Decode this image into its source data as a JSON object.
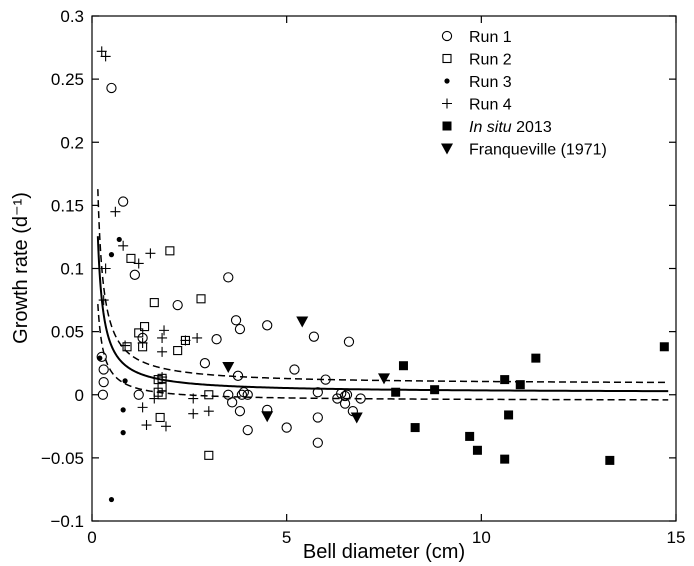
{
  "chart_data": {
    "type": "scatter",
    "xlabel": "Bell diameter (cm)",
    "ylabel": "Growth rate (d⁻¹)",
    "xlim": [
      0,
      15
    ],
    "ylim": [
      -0.1,
      0.3
    ],
    "xticks": [
      0,
      5,
      10,
      15
    ],
    "yticks": [
      -0.1,
      -0.05,
      0,
      0.05,
      0.1,
      0.15,
      0.2,
      0.25,
      0.3
    ],
    "ytick_labels": [
      "−0.1",
      "−0.05",
      "0",
      "0.05",
      "0.1",
      "0.15",
      "0.2",
      "0.25",
      "0.3"
    ],
    "grid": false,
    "legend_position": "top-right",
    "series": [
      {
        "name": "Run 1",
        "marker": "open-circle",
        "points": [
          [
            0.25,
            0.03
          ],
          [
            0.3,
            0.02
          ],
          [
            0.3,
            0.01
          ],
          [
            0.28,
            0.0
          ],
          [
            0.5,
            0.243
          ],
          [
            0.8,
            0.153
          ],
          [
            1.1,
            0.095
          ],
          [
            1.2,
            0.0
          ],
          [
            1.3,
            0.045
          ],
          [
            2.2,
            0.071
          ],
          [
            2.9,
            0.025
          ],
          [
            3.2,
            0.044
          ],
          [
            3.5,
            0.093
          ],
          [
            3.5,
            0.0
          ],
          [
            3.6,
            -0.006
          ],
          [
            3.7,
            0.059
          ],
          [
            3.75,
            0.015
          ],
          [
            3.8,
            0.052
          ],
          [
            3.8,
            -0.013
          ],
          [
            3.85,
            0.0
          ],
          [
            3.9,
            0.002
          ],
          [
            4.0,
            -0.028
          ],
          [
            4.0,
            0.0
          ],
          [
            4.5,
            0.055
          ],
          [
            4.5,
            -0.012
          ],
          [
            5.0,
            -0.026
          ],
          [
            5.2,
            0.02
          ],
          [
            5.7,
            0.046
          ],
          [
            5.8,
            0.002
          ],
          [
            5.8,
            -0.018
          ],
          [
            5.8,
            -0.038
          ],
          [
            6.0,
            0.012
          ],
          [
            6.3,
            -0.003
          ],
          [
            6.4,
            0.001
          ],
          [
            6.5,
            -0.001
          ],
          [
            6.5,
            -0.007
          ],
          [
            6.55,
            0.0
          ],
          [
            6.6,
            0.042
          ],
          [
            6.7,
            -0.013
          ],
          [
            6.9,
            -0.003
          ]
        ]
      },
      {
        "name": "Run 2",
        "marker": "open-square",
        "points": [
          [
            0.9,
            0.038
          ],
          [
            1.0,
            0.108
          ],
          [
            1.2,
            0.049
          ],
          [
            1.3,
            0.038
          ],
          [
            1.35,
            0.054
          ],
          [
            1.6,
            0.073
          ],
          [
            1.7,
            0.012
          ],
          [
            1.7,
            0.002
          ],
          [
            1.75,
            -0.018
          ],
          [
            1.8,
            0.0
          ],
          [
            1.8,
            0.013
          ],
          [
            1.8,
            0.006
          ],
          [
            2.0,
            0.114
          ],
          [
            2.2,
            0.035
          ],
          [
            2.4,
            0.043
          ],
          [
            2.8,
            0.076
          ],
          [
            3.0,
            0.0
          ],
          [
            3.0,
            -0.048
          ]
        ]
      },
      {
        "name": "Run 3",
        "marker": "filled-circle",
        "points": [
          [
            0.2,
            0.029
          ],
          [
            0.5,
            0.111
          ],
          [
            0.5,
            -0.083
          ],
          [
            0.7,
            0.123
          ],
          [
            0.8,
            -0.012
          ],
          [
            0.8,
            -0.03
          ],
          [
            0.85,
            0.011
          ]
        ]
      },
      {
        "name": "Run 4",
        "marker": "plus",
        "points": [
          [
            0.25,
            0.272
          ],
          [
            0.35,
            0.268
          ],
          [
            0.35,
            0.1
          ],
          [
            0.3,
            0.075
          ],
          [
            0.6,
            0.145
          ],
          [
            0.8,
            0.118
          ],
          [
            0.85,
            0.039
          ],
          [
            1.2,
            0.104
          ],
          [
            1.3,
            0.041
          ],
          [
            1.3,
            -0.01
          ],
          [
            1.4,
            -0.024
          ],
          [
            1.5,
            0.112
          ],
          [
            1.6,
            -0.003
          ],
          [
            1.8,
            0.034
          ],
          [
            1.8,
            0.014
          ],
          [
            1.8,
            0.045
          ],
          [
            1.85,
            0.051
          ],
          [
            1.9,
            -0.025
          ],
          [
            2.4,
            0.043
          ],
          [
            2.6,
            -0.003
          ],
          [
            2.6,
            -0.015
          ],
          [
            2.7,
            0.045
          ],
          [
            3.0,
            -0.013
          ]
        ]
      },
      {
        "name": "In situ 2013",
        "marker": "filled-square",
        "points": [
          [
            7.8,
            0.002
          ],
          [
            8.0,
            0.023
          ],
          [
            8.3,
            -0.026
          ],
          [
            8.8,
            0.004
          ],
          [
            9.7,
            -0.033
          ],
          [
            9.9,
            -0.044
          ],
          [
            10.6,
            0.012
          ],
          [
            10.6,
            -0.051
          ],
          [
            10.7,
            -0.016
          ],
          [
            11.0,
            0.008
          ],
          [
            11.4,
            0.029
          ],
          [
            13.3,
            -0.052
          ],
          [
            14.7,
            0.038
          ]
        ]
      },
      {
        "name": "Franqueville (1971)",
        "marker": "filled-triangle-down",
        "points": [
          [
            3.5,
            0.022
          ],
          [
            4.5,
            -0.017
          ],
          [
            5.4,
            0.058
          ],
          [
            6.8,
            -0.018
          ],
          [
            7.5,
            0.013
          ]
        ]
      }
    ],
    "fit_curve": {
      "model": "a + b/x",
      "a": 0.0016,
      "b": 0.0186,
      "x_start": 0.15,
      "x_end": 14.8
    },
    "fit_lower": {
      "model": "a + b/x",
      "a": -0.0048,
      "b": 0.0115,
      "x_start": 0.15,
      "x_end": 14.8
    },
    "fit_upper": {
      "model": "a + b/x",
      "a": 0.0082,
      "b": 0.0232,
      "x_start": 0.15,
      "x_end": 14.8
    }
  }
}
